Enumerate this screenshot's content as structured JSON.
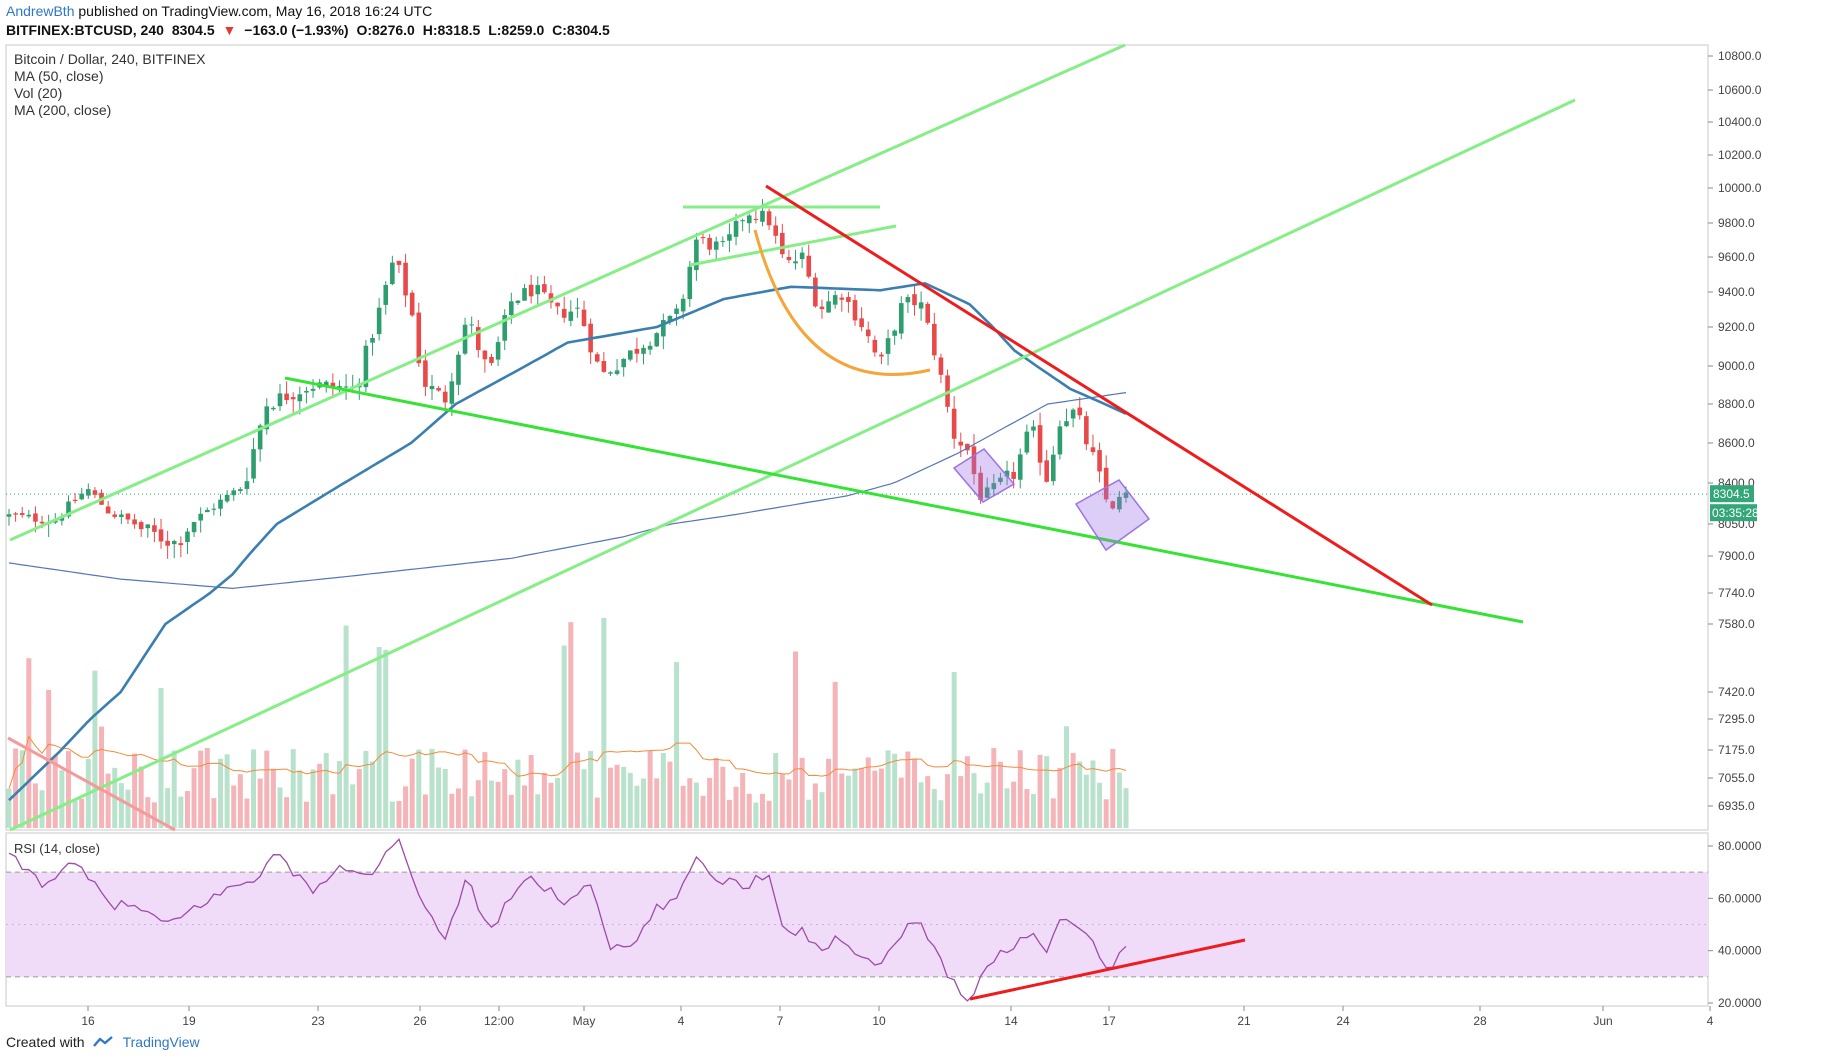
{
  "header": {
    "author": "AndrewBth",
    "published": "published on TradingView.com, May 16, 2018 16:24 UTC",
    "symbol": "BITFINEX:BTCUSD, 240",
    "last": "8304.5",
    "change": "−163.0 (−1.93%)",
    "open": "O:8276.0",
    "high": "H:8318.5",
    "low": "L:8259.0",
    "close": "C:8304.5"
  },
  "legend": {
    "title": "Bitcoin / Dollar, 240, BITFINEX",
    "ma50": "MA (50, close)",
    "vol": "Vol (20)",
    "ma200": "MA (200, close)"
  },
  "rsi_label": "RSI (14, close)",
  "price_tag": "8304.5",
  "countdown": "03:35:28",
  "footer": {
    "created_with": "Created with",
    "brand": "TradingView"
  },
  "colors": {
    "up": "#2e9e6e",
    "down": "#e84a4a",
    "ma50": "#3a7fb0",
    "ma200": "#5575b8",
    "trend_green": "#34e334",
    "channel_green": "#86ee86",
    "trend_red": "#ee1c1c",
    "arc_orange": "#f5a53a",
    "rsi_line": "#9c4ca8",
    "rsi_band": "#f0dcf8",
    "rect_purple": "#9c73e6"
  },
  "chart_data": [
    {
      "type": "candlestick",
      "title": "Bitcoin / Dollar, 240, BITFINEX",
      "x_ticks": [
        "16",
        "19",
        "23",
        "26",
        "12:00",
        "May",
        "4",
        "7",
        "10",
        "14",
        "17",
        "21",
        "24",
        "28",
        "Jun",
        "4"
      ],
      "y_ticks": [
        "10800.0",
        "10600.0",
        "10400.0",
        "10200.0",
        "10000.0",
        "9800.0",
        "9600.0",
        "9400.0",
        "9200.0",
        "9000.0",
        "8800.0",
        "8600.0",
        "8400.0",
        "8050.0",
        "7900.0",
        "7740.0",
        "7580.0",
        "7420.0",
        "7295.0",
        "7175.0",
        "7055.0",
        "6935.0"
      ],
      "last_price": 8304.5,
      "close_anchors": [
        {
          "x": 0,
          "y": 8120
        },
        {
          "x": 0.04,
          "y": 8080
        },
        {
          "x": 0.07,
          "y": 8350
        },
        {
          "x": 0.09,
          "y": 8150
        },
        {
          "x": 0.12,
          "y": 8020
        },
        {
          "x": 0.15,
          "y": 7960
        },
        {
          "x": 0.18,
          "y": 8180
        },
        {
          "x": 0.21,
          "y": 8380
        },
        {
          "x": 0.23,
          "y": 8800
        },
        {
          "x": 0.27,
          "y": 8900
        },
        {
          "x": 0.31,
          "y": 8880
        },
        {
          "x": 0.33,
          "y": 9260
        },
        {
          "x": 0.345,
          "y": 9600
        },
        {
          "x": 0.36,
          "y": 9300
        },
        {
          "x": 0.37,
          "y": 8920
        },
        {
          "x": 0.39,
          "y": 8820
        },
        {
          "x": 0.41,
          "y": 9250
        },
        {
          "x": 0.43,
          "y": 8950
        },
        {
          "x": 0.45,
          "y": 9350
        },
        {
          "x": 0.47,
          "y": 9420
        },
        {
          "x": 0.49,
          "y": 9280
        },
        {
          "x": 0.51,
          "y": 9300
        },
        {
          "x": 0.53,
          "y": 8950
        },
        {
          "x": 0.56,
          "y": 9080
        },
        {
          "x": 0.585,
          "y": 9200
        },
        {
          "x": 0.6,
          "y": 9280
        },
        {
          "x": 0.615,
          "y": 9700
        },
        {
          "x": 0.64,
          "y": 9650
        },
        {
          "x": 0.66,
          "y": 9870
        },
        {
          "x": 0.68,
          "y": 9820
        },
        {
          "x": 0.695,
          "y": 9550
        },
        {
          "x": 0.71,
          "y": 9600
        },
        {
          "x": 0.725,
          "y": 9300
        },
        {
          "x": 0.745,
          "y": 9400
        },
        {
          "x": 0.765,
          "y": 9200
        },
        {
          "x": 0.78,
          "y": 9000
        },
        {
          "x": 0.8,
          "y": 9330
        },
        {
          "x": 0.815,
          "y": 9350
        },
        {
          "x": 0.83,
          "y": 9050
        },
        {
          "x": 0.845,
          "y": 8650
        },
        {
          "x": 0.86,
          "y": 8550
        },
        {
          "x": 0.87,
          "y": 8280
        },
        {
          "x": 0.885,
          "y": 8380
        },
        {
          "x": 0.9,
          "y": 8450
        },
        {
          "x": 0.915,
          "y": 8680
        },
        {
          "x": 0.93,
          "y": 8410
        },
        {
          "x": 0.94,
          "y": 8720
        },
        {
          "x": 0.955,
          "y": 8760
        },
        {
          "x": 0.965,
          "y": 8600
        },
        {
          "x": 0.975,
          "y": 8460
        },
        {
          "x": 0.985,
          "y": 8180
        },
        {
          "x": 1.0,
          "y": 8304.5
        }
      ],
      "ma50_anchors": [
        {
          "x": 0,
          "y": 6960
        },
        {
          "x": 0.1,
          "y": 7420
        },
        {
          "x": 0.2,
          "y": 7820
        },
        {
          "x": 0.3,
          "y": 8400
        },
        {
          "x": 0.36,
          "y": 8600
        },
        {
          "x": 0.4,
          "y": 8800
        },
        {
          "x": 0.5,
          "y": 9120
        },
        {
          "x": 0.58,
          "y": 9200
        },
        {
          "x": 0.64,
          "y": 9360
        },
        {
          "x": 0.7,
          "y": 9430
        },
        {
          "x": 0.78,
          "y": 9410
        },
        {
          "x": 0.82,
          "y": 9450
        },
        {
          "x": 0.86,
          "y": 9330
        },
        {
          "x": 0.9,
          "y": 9080
        },
        {
          "x": 0.95,
          "y": 8880
        },
        {
          "x": 1.0,
          "y": 8750
        }
      ],
      "ma200_anchors": [
        {
          "x": 0,
          "y": 7870
        },
        {
          "x": 0.1,
          "y": 7800
        },
        {
          "x": 0.2,
          "y": 7760
        },
        {
          "x": 0.3,
          "y": 7810
        },
        {
          "x": 0.45,
          "y": 7890
        },
        {
          "x": 0.55,
          "y": 7990
        },
        {
          "x": 0.65,
          "y": 8130
        },
        {
          "x": 0.75,
          "y": 8290
        },
        {
          "x": 0.85,
          "y": 8550
        },
        {
          "x": 0.93,
          "y": 8800
        },
        {
          "x": 1.0,
          "y": 8860
        }
      ]
    },
    {
      "type": "bar",
      "title": "Vol (20)",
      "seed": 7
    },
    {
      "type": "line",
      "title": "RSI (14, close)",
      "y_ticks": [
        "80.0000",
        "60.0000",
        "40.0000",
        "20.0000"
      ],
      "band": [
        30,
        70
      ],
      "anchors": [
        {
          "x": 0,
          "y": 76
        },
        {
          "x": 0.03,
          "y": 66
        },
        {
          "x": 0.06,
          "y": 73
        },
        {
          "x": 0.09,
          "y": 58
        },
        {
          "x": 0.12,
          "y": 56
        },
        {
          "x": 0.14,
          "y": 49
        },
        {
          "x": 0.18,
          "y": 60
        },
        {
          "x": 0.22,
          "y": 68
        },
        {
          "x": 0.24,
          "y": 77
        },
        {
          "x": 0.27,
          "y": 63
        },
        {
          "x": 0.3,
          "y": 72
        },
        {
          "x": 0.32,
          "y": 68
        },
        {
          "x": 0.35,
          "y": 82
        },
        {
          "x": 0.37,
          "y": 56
        },
        {
          "x": 0.39,
          "y": 45
        },
        {
          "x": 0.41,
          "y": 68
        },
        {
          "x": 0.43,
          "y": 47
        },
        {
          "x": 0.46,
          "y": 68
        },
        {
          "x": 0.48,
          "y": 64
        },
        {
          "x": 0.5,
          "y": 58
        },
        {
          "x": 0.52,
          "y": 67
        },
        {
          "x": 0.54,
          "y": 40
        },
        {
          "x": 0.56,
          "y": 42
        },
        {
          "x": 0.58,
          "y": 56
        },
        {
          "x": 0.6,
          "y": 60
        },
        {
          "x": 0.615,
          "y": 77
        },
        {
          "x": 0.63,
          "y": 68
        },
        {
          "x": 0.66,
          "y": 65
        },
        {
          "x": 0.68,
          "y": 70
        },
        {
          "x": 0.695,
          "y": 47
        },
        {
          "x": 0.71,
          "y": 48
        },
        {
          "x": 0.725,
          "y": 40
        },
        {
          "x": 0.745,
          "y": 45
        },
        {
          "x": 0.765,
          "y": 38
        },
        {
          "x": 0.78,
          "y": 34
        },
        {
          "x": 0.8,
          "y": 48
        },
        {
          "x": 0.815,
          "y": 50
        },
        {
          "x": 0.83,
          "y": 40
        },
        {
          "x": 0.845,
          "y": 28
        },
        {
          "x": 0.86,
          "y": 22
        },
        {
          "x": 0.87,
          "y": 30
        },
        {
          "x": 0.885,
          "y": 38
        },
        {
          "x": 0.9,
          "y": 42
        },
        {
          "x": 0.915,
          "y": 48
        },
        {
          "x": 0.93,
          "y": 38
        },
        {
          "x": 0.94,
          "y": 54
        },
        {
          "x": 0.955,
          "y": 50
        },
        {
          "x": 0.965,
          "y": 46
        },
        {
          "x": 0.975,
          "y": 40
        },
        {
          "x": 0.985,
          "y": 33
        },
        {
          "x": 1.0,
          "y": 41
        }
      ]
    }
  ]
}
